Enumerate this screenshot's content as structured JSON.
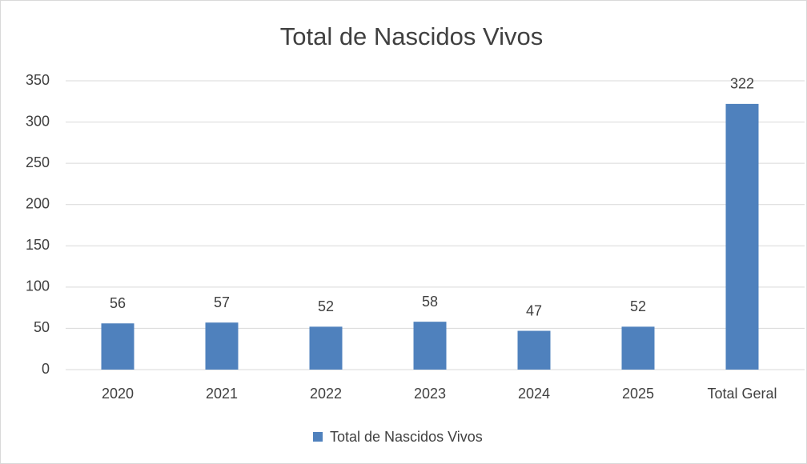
{
  "chart_data": {
    "type": "bar",
    "title": "Total de Nascidos Vivos",
    "categories": [
      "2020",
      "2021",
      "2022",
      "2023",
      "2024",
      "2025",
      "Total Geral"
    ],
    "series": [
      {
        "name": "Total de Nascidos Vivos",
        "color": "#4f81bd",
        "values": [
          56,
          57,
          52,
          58,
          47,
          52,
          322
        ]
      }
    ],
    "ylim": [
      0,
      350
    ],
    "yticks": [
      0,
      50,
      100,
      150,
      200,
      250,
      300,
      350
    ],
    "grid": true,
    "legend": "bottom",
    "data_labels": true
  }
}
